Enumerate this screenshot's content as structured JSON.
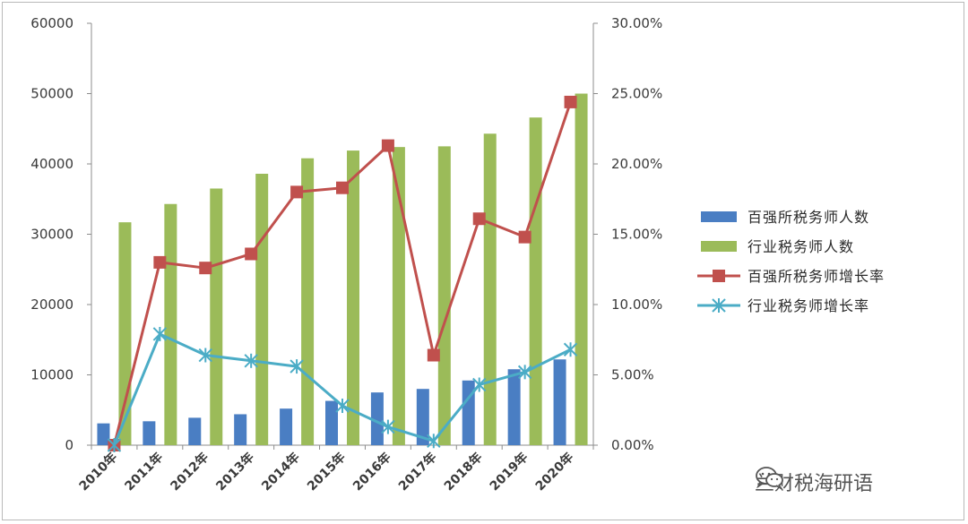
{
  "chart_data": {
    "type": "bar",
    "categories": [
      "2010年",
      "2011年",
      "2012年",
      "2013年",
      "2014年",
      "2015年",
      "2016年",
      "2017年",
      "2018年",
      "2019年",
      "2020年"
    ],
    "series": [
      {
        "name": "百强所税务师人数",
        "kind": "bar",
        "axis": "left",
        "color": "#4a7ec3",
        "values": [
          3100,
          3400,
          3900,
          4400,
          5200,
          6300,
          7500,
          8000,
          9200,
          10800,
          12200
        ]
      },
      {
        "name": "行业税务师人数",
        "kind": "bar",
        "axis": "left",
        "color": "#9bbb59",
        "values": [
          31700,
          34300,
          36500,
          38600,
          40800,
          41900,
          42400,
          42500,
          44300,
          46600,
          50000
        ]
      },
      {
        "name": "百强所税务师增长率",
        "kind": "line",
        "axis": "right",
        "color": "#c0504d",
        "marker": "square",
        "values": [
          0.0,
          13.0,
          12.6,
          13.6,
          18.0,
          18.3,
          21.3,
          6.4,
          16.1,
          14.8,
          24.4
        ]
      },
      {
        "name": "行业税务师增长率",
        "kind": "line",
        "axis": "right",
        "color": "#4bacc6",
        "marker": "star",
        "values": [
          0.0,
          7.9,
          6.4,
          6.0,
          5.6,
          2.8,
          1.3,
          0.3,
          4.3,
          5.2,
          6.8
        ]
      }
    ],
    "ylim_left": [
      0,
      60000
    ],
    "ylim_right": [
      0,
      30
    ],
    "yticks_left": [
      "0",
      "10000",
      "20000",
      "30000",
      "40000",
      "50000",
      "60000"
    ],
    "yticks_right": [
      "0.00%",
      "5.00%",
      "10.00%",
      "15.00%",
      "20.00%",
      "25.00%",
      "30.00%"
    ],
    "grid": false,
    "legend_position": "right"
  },
  "watermark": {
    "text": "兰财税海研语",
    "icon": "wechat-icon"
  }
}
